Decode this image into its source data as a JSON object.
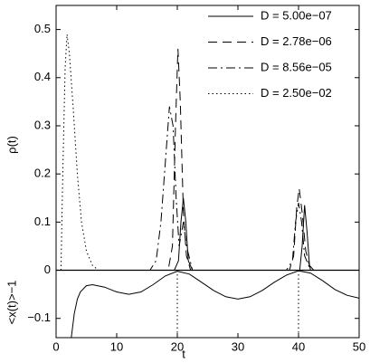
{
  "chart_data": {
    "type": "line",
    "xlabel": "t",
    "ylabel": "ρ(t)",
    "ylabel_lower": "<x(t)>−1",
    "xlim": [
      0,
      50
    ],
    "xticks": [
      0,
      10,
      20,
      30,
      40,
      50
    ],
    "ylim": [
      -0.14,
      0.55
    ],
    "yticks": [
      {
        "value": -0.1,
        "label": "−0.1"
      },
      0,
      0.1,
      0.2,
      0.3,
      0.4,
      0.5
    ],
    "legend": "upper right",
    "hline": 0,
    "vlines": [
      20,
      40
    ],
    "series": [
      {
        "name": "D = 5.00e−07",
        "color": "#000",
        "style": "solid",
        "x": [
          0,
          19.5,
          20.2,
          20.6,
          21,
          21.4,
          21.8,
          22.5,
          39.5,
          40.2,
          40.6,
          41,
          41.4,
          41.8,
          42.5,
          50
        ],
        "values": [
          0,
          0,
          0.02,
          0.1,
          0.15,
          0.1,
          0.02,
          0,
          0,
          0,
          0.05,
          0.135,
          0.08,
          0.01,
          0,
          0
        ]
      },
      {
        "name": "D = 2.78e−06",
        "color": "#000",
        "style": "dashed",
        "x": [
          0,
          18.5,
          19.2,
          19.7,
          20.1,
          20.5,
          21,
          21.5,
          22.2,
          38.5,
          39.2,
          39.7,
          40.1,
          40.6,
          41.2,
          42,
          50
        ],
        "values": [
          0,
          0,
          0.05,
          0.3,
          0.46,
          0.35,
          0.12,
          0.03,
          0,
          0,
          0.03,
          0.13,
          0.17,
          0.12,
          0.04,
          0,
          0
        ]
      },
      {
        "name": "D = 8.56e−05",
        "color": "#000",
        "style": "dashdot",
        "x": [
          0,
          15.5,
          16.5,
          17.3,
          18,
          18.7,
          19.3,
          19.8,
          20.3,
          21,
          21.5,
          22.5,
          38,
          39,
          39.5,
          40,
          40.5,
          41,
          42,
          50
        ],
        "values": [
          0,
          0,
          0.02,
          0.1,
          0.22,
          0.34,
          0.3,
          0.15,
          0.05,
          0.1,
          0.05,
          0,
          0,
          0.02,
          0.1,
          0.14,
          0.1,
          0.03,
          0,
          0
        ]
      },
      {
        "name": "D = 2.50e−02",
        "color": "#000",
        "style": "dotted",
        "x": [
          0.8,
          1.1,
          1.5,
          1.8,
          2.2,
          2.8,
          3.5,
          4.2,
          5,
          6,
          7,
          50
        ],
        "values": [
          0,
          0.2,
          0.42,
          0.49,
          0.45,
          0.34,
          0.2,
          0.1,
          0.04,
          0.01,
          0,
          0
        ]
      }
    ],
    "mean_series": {
      "color": "#000",
      "x": [
        2.5,
        3,
        3.5,
        4,
        5,
        6,
        8,
        10,
        12,
        14,
        16,
        18,
        20,
        22,
        24,
        26,
        28,
        30,
        32,
        34,
        36,
        38,
        40,
        42,
        44,
        46,
        48,
        50
      ],
      "values": [
        -0.14,
        -0.09,
        -0.06,
        -0.045,
        -0.032,
        -0.03,
        -0.035,
        -0.045,
        -0.05,
        -0.045,
        -0.03,
        -0.012,
        -0.002,
        -0.008,
        -0.025,
        -0.042,
        -0.055,
        -0.06,
        -0.055,
        -0.042,
        -0.025,
        -0.01,
        -0.001,
        -0.006,
        -0.022,
        -0.04,
        -0.052,
        -0.058
      ]
    }
  }
}
